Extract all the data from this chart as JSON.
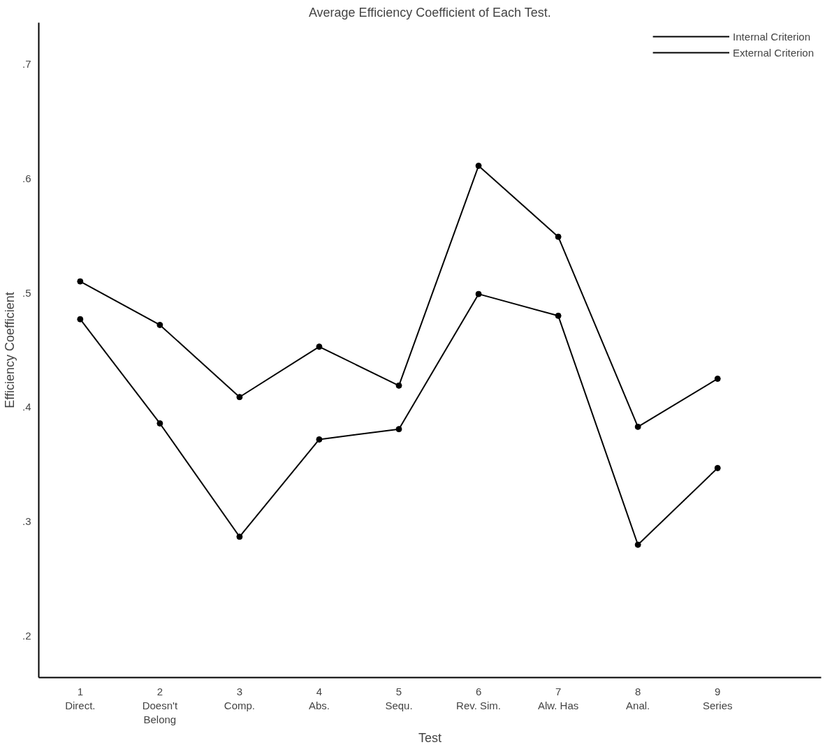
{
  "chart_data": {
    "type": "line",
    "title": "Average Efficiency Coefficient of Each Test.",
    "xlabel": "Test",
    "ylabel": "Efficiency Coefficient",
    "categories": [
      "1\nDirect.",
      "2\nDoesn't\nBelong",
      "3\nComp.",
      "4\nAbs.",
      "5\nSequ.",
      "6\nRev. Sim.",
      "7\nAlw. Has",
      "8\nAnal.",
      "9\nSeries"
    ],
    "series": [
      {
        "name": "Internal Criterion",
        "color": "#000000",
        "values": [
          0.51,
          0.472,
          0.409,
          0.453,
          0.419,
          0.611,
          0.549,
          0.383,
          0.425
        ]
      },
      {
        "name": "External Criterion",
        "color": "#000000",
        "values": [
          0.477,
          0.386,
          0.287,
          0.372,
          0.381,
          0.499,
          0.48,
          0.28,
          0.347
        ]
      }
    ],
    "ylim": [
      0.164,
      0.736
    ],
    "yticks": [
      {
        "value": 0.2,
        "label": ".2"
      },
      {
        "value": 0.3,
        "label": ".3"
      },
      {
        "value": 0.4,
        "label": ".4"
      },
      {
        "value": 0.5,
        "label": ".5"
      },
      {
        "value": 0.6,
        "label": ".6"
      },
      {
        "value": 0.7,
        "label": ".7"
      }
    ],
    "marker": "circle",
    "line_style": "solid",
    "grid": false,
    "legend": "top right"
  }
}
